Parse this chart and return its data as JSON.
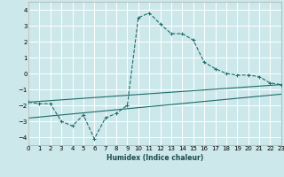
{
  "xlabel": "Humidex (Indice chaleur)",
  "xlim": [
    0,
    23
  ],
  "ylim": [
    -4.5,
    4.5
  ],
  "yticks": [
    -4,
    -3,
    -2,
    -1,
    0,
    1,
    2,
    3,
    4
  ],
  "xticks": [
    0,
    1,
    2,
    3,
    4,
    5,
    6,
    7,
    8,
    9,
    10,
    11,
    12,
    13,
    14,
    15,
    16,
    17,
    18,
    19,
    20,
    21,
    22,
    23
  ],
  "bg_color": "#cde8eb",
  "grid_color": "#ffffff",
  "line_color": "#1a6b6b",
  "line1_x": [
    0,
    1,
    2,
    3,
    4,
    5,
    6,
    7,
    8,
    9,
    10,
    11,
    12,
    13,
    14,
    15,
    16,
    17,
    18,
    19,
    20,
    21,
    22,
    23
  ],
  "line1_y": [
    -1.8,
    -1.9,
    -1.9,
    -3.0,
    -3.3,
    -2.6,
    -4.1,
    -2.8,
    -2.5,
    -2.0,
    3.5,
    3.8,
    3.1,
    2.5,
    2.5,
    2.1,
    0.7,
    0.3,
    0.0,
    -0.1,
    -0.1,
    -0.2,
    -0.6,
    -0.7
  ],
  "line2_x": [
    0,
    23
  ],
  "line2_y": [
    -1.8,
    -0.7
  ],
  "line3_x": [
    0,
    23
  ],
  "line3_y": [
    -2.8,
    -1.3
  ]
}
